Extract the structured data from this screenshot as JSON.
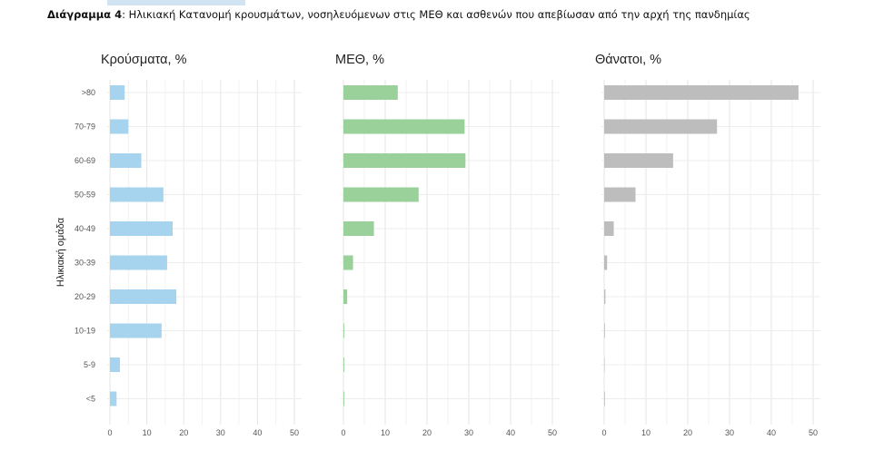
{
  "caption": {
    "prefix": "Διάγραμμα 4",
    "text": ": Ηλικιακή Κατανομή κρουσμάτων, νοσηλευόμενων στις ΜΕΘ και ασθενών που απεβίωσαν από την αρχή της πανδημίας"
  },
  "chart_data": {
    "type": "bar",
    "orientation": "horizontal",
    "ylabel": "Ηλικιακή ομάδα",
    "categories": [
      ">80",
      "70-79",
      "60-69",
      "50-59",
      "40-49",
      "30-39",
      "20-29",
      "10-19",
      "5-9",
      "<5"
    ],
    "xticks": [
      0,
      10,
      20,
      30,
      40,
      50
    ],
    "grid": true,
    "panels": [
      {
        "title": "Κρούσματα, %",
        "color": "#a6d3ee",
        "xlim": [
          0,
          50
        ],
        "values": [
          4,
          5,
          8.5,
          14.5,
          17,
          15.5,
          18,
          14,
          2.7,
          1.8
        ]
      },
      {
        "title": "ΜΕΘ, %",
        "color": "#9ad09a",
        "xlim": [
          0,
          50
        ],
        "values": [
          13,
          29,
          29.2,
          18,
          7.3,
          2.3,
          0.9,
          0.2,
          0.2,
          0.2
        ]
      },
      {
        "title": "Θάνατοι, %",
        "color": "#bdbdbd",
        "xlim": [
          0,
          50
        ],
        "values": [
          46.5,
          27,
          16.5,
          7.5,
          2.3,
          0.7,
          0.3,
          0.1,
          0,
          0.1
        ]
      }
    ]
  }
}
